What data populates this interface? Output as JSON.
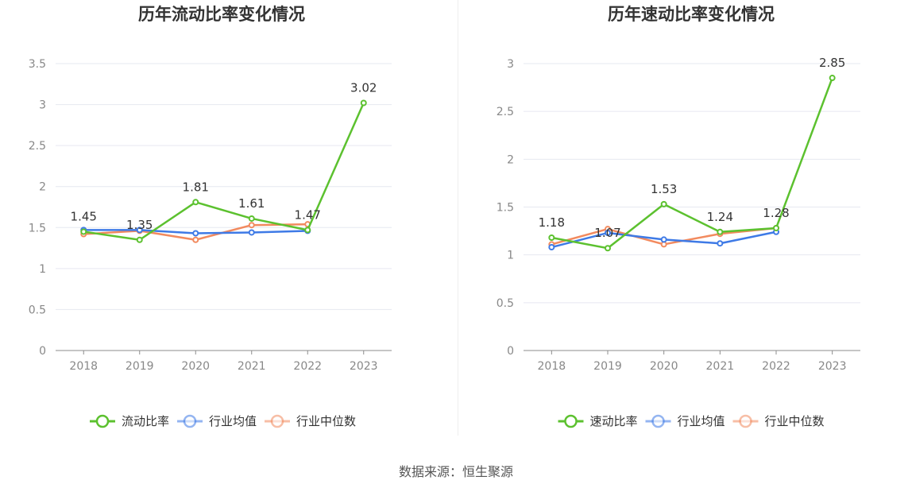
{
  "source": "数据来源：恒生聚源",
  "chart_data": [
    {
      "type": "line",
      "title": "历年流动比率变化情况",
      "categories": [
        "2018",
        "2019",
        "2020",
        "2021",
        "2022",
        "2023"
      ],
      "ylim": [
        0,
        3.5
      ],
      "yticks": [
        0,
        0.5,
        1,
        1.5,
        2,
        2.5,
        3,
        3.5
      ],
      "ytick_labels": [
        "0",
        "0.5",
        "1",
        "1.5",
        "2",
        "2.5",
        "3",
        "3.5"
      ],
      "legend_position": "bottom",
      "series": [
        {
          "name": "流动比率",
          "color": "#5cc12f",
          "values": [
            1.45,
            1.35,
            1.81,
            1.61,
            1.47,
            3.02
          ],
          "labels": [
            "1.45",
            "1.35",
            "1.81",
            "1.61",
            "1.47",
            "3.02"
          ]
        },
        {
          "name": "行业均值",
          "color": "#3e7ae6",
          "values": [
            1.47,
            1.47,
            1.43,
            1.44,
            1.46,
            null
          ]
        },
        {
          "name": "行业中位数",
          "color": "#f28a5e",
          "values": [
            1.42,
            1.46,
            1.35,
            1.53,
            1.54,
            null
          ]
        }
      ]
    },
    {
      "type": "line",
      "title": "历年速动比率变化情况",
      "categories": [
        "2018",
        "2019",
        "2020",
        "2021",
        "2022",
        "2023"
      ],
      "ylim": [
        0,
        3
      ],
      "yticks": [
        0,
        0.5,
        1,
        1.5,
        2,
        2.5,
        3
      ],
      "ytick_labels": [
        "0",
        "0.5",
        "1",
        "1.5",
        "2",
        "2.5",
        "3"
      ],
      "legend_position": "bottom",
      "series": [
        {
          "name": "速动比率",
          "color": "#5cc12f",
          "values": [
            1.18,
            1.07,
            1.53,
            1.24,
            1.28,
            2.85
          ],
          "labels": [
            "1.18",
            "1.07",
            "1.53",
            "1.24",
            "1.28",
            "2.85"
          ]
        },
        {
          "name": "行业均值",
          "color": "#3e7ae6",
          "values": [
            1.08,
            1.23,
            1.16,
            1.12,
            1.24,
            null
          ]
        },
        {
          "name": "行业中位数",
          "color": "#f28a5e",
          "values": [
            1.11,
            1.27,
            1.11,
            1.22,
            1.28,
            null
          ]
        }
      ]
    }
  ]
}
